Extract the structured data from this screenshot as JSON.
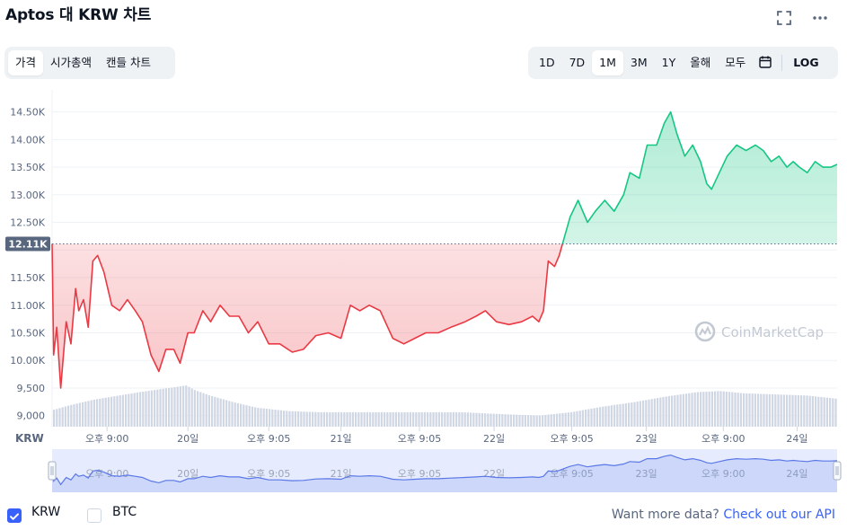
{
  "header": {
    "title": "Aptos 대 KRW 차트"
  },
  "chart_type_tabs": [
    {
      "label": "가격",
      "active": true
    },
    {
      "label": "시가총액",
      "active": false
    },
    {
      "label": "캔들 차트",
      "active": false
    }
  ],
  "range_tabs": [
    {
      "label": "1D",
      "active": false
    },
    {
      "label": "7D",
      "active": false
    },
    {
      "label": "1M",
      "active": true
    },
    {
      "label": "3M",
      "active": false
    },
    {
      "label": "1Y",
      "active": false
    },
    {
      "label": "올해",
      "active": false
    },
    {
      "label": "모두",
      "active": false
    }
  ],
  "log_label": "LOG",
  "icons": {
    "fullscreen": "fullscreen-icon",
    "more": "more-icon",
    "calendar": "calendar-icon",
    "check": "check-icon"
  },
  "colors": {
    "up": "#16c784",
    "down": "#ea3943",
    "volume": "#cfd6e4",
    "accent": "#3861fb",
    "navigator_line": "#5b78e8"
  },
  "watermark": "CoinMarketCap",
  "currency_label": "KRW",
  "legend": {
    "krw_label": "KRW",
    "btc_label": "BTC",
    "krw_checked": true,
    "btc_checked": false
  },
  "api": {
    "text": "Want more data?",
    "link": "Check out our API"
  },
  "chart_data": {
    "type": "line",
    "ylim": [
      8800,
      14900
    ],
    "y_ticks": [
      9000,
      9500,
      10000,
      10500,
      11000,
      11500,
      12000,
      12500,
      13000,
      13500,
      14000,
      14500
    ],
    "y_tick_labels": [
      "9,000",
      "9,500",
      "10.00K",
      "10.50K",
      "11.00K",
      "11.50K",
      "",
      "12.50K",
      "13.00K",
      "13.50K",
      "14.00K",
      "14.50K"
    ],
    "baseline": 12110,
    "baseline_label": "12.11K",
    "x_ticks": [
      {
        "t": 0.07,
        "label": "오후 9:00"
      },
      {
        "t": 0.173,
        "label": "20일"
      },
      {
        "t": 0.276,
        "label": "오후 9:05"
      },
      {
        "t": 0.368,
        "label": "21일"
      },
      {
        "t": 0.468,
        "label": "오후 9:05"
      },
      {
        "t": 0.563,
        "label": "22일"
      },
      {
        "t": 0.662,
        "label": "오후 9:05"
      },
      {
        "t": 0.757,
        "label": "23일"
      },
      {
        "t": 0.855,
        "label": "오후 9:00"
      },
      {
        "t": 0.949,
        "label": "24일"
      }
    ],
    "price_points": [
      [
        0.0,
        12110
      ],
      [
        0.002,
        10100
      ],
      [
        0.006,
        10600
      ],
      [
        0.011,
        9500
      ],
      [
        0.018,
        10700
      ],
      [
        0.024,
        10300
      ],
      [
        0.03,
        11300
      ],
      [
        0.034,
        10900
      ],
      [
        0.04,
        11100
      ],
      [
        0.046,
        10600
      ],
      [
        0.052,
        11800
      ],
      [
        0.058,
        11900
      ],
      [
        0.066,
        11600
      ],
      [
        0.076,
        11000
      ],
      [
        0.086,
        10900
      ],
      [
        0.096,
        11100
      ],
      [
        0.106,
        10900
      ],
      [
        0.115,
        10700
      ],
      [
        0.126,
        10100
      ],
      [
        0.136,
        9800
      ],
      [
        0.145,
        10200
      ],
      [
        0.155,
        10200
      ],
      [
        0.163,
        9950
      ],
      [
        0.173,
        10500
      ],
      [
        0.181,
        10500
      ],
      [
        0.192,
        10900
      ],
      [
        0.202,
        10700
      ],
      [
        0.214,
        11000
      ],
      [
        0.226,
        10800
      ],
      [
        0.238,
        10800
      ],
      [
        0.25,
        10500
      ],
      [
        0.262,
        10700
      ],
      [
        0.276,
        10300
      ],
      [
        0.29,
        10300
      ],
      [
        0.306,
        10150
      ],
      [
        0.32,
        10200
      ],
      [
        0.336,
        10450
      ],
      [
        0.352,
        10500
      ],
      [
        0.368,
        10400
      ],
      [
        0.38,
        11000
      ],
      [
        0.392,
        10900
      ],
      [
        0.404,
        11000
      ],
      [
        0.418,
        10900
      ],
      [
        0.434,
        10400
      ],
      [
        0.448,
        10300
      ],
      [
        0.462,
        10400
      ],
      [
        0.476,
        10500
      ],
      [
        0.492,
        10500
      ],
      [
        0.508,
        10600
      ],
      [
        0.526,
        10700
      ],
      [
        0.54,
        10800
      ],
      [
        0.552,
        10900
      ],
      [
        0.566,
        10700
      ],
      [
        0.582,
        10650
      ],
      [
        0.598,
        10700
      ],
      [
        0.612,
        10800
      ],
      [
        0.62,
        10700
      ],
      [
        0.626,
        10900
      ],
      [
        0.632,
        11800
      ],
      [
        0.64,
        11700
      ],
      [
        0.646,
        11900
      ],
      [
        0.652,
        12200
      ],
      [
        0.66,
        12600
      ],
      [
        0.67,
        12900
      ],
      [
        0.682,
        12500
      ],
      [
        0.692,
        12700
      ],
      [
        0.704,
        12900
      ],
      [
        0.716,
        12700
      ],
      [
        0.728,
        13000
      ],
      [
        0.736,
        13400
      ],
      [
        0.748,
        13300
      ],
      [
        0.758,
        13900
      ],
      [
        0.77,
        13900
      ],
      [
        0.78,
        14300
      ],
      [
        0.788,
        14500
      ],
      [
        0.796,
        14100
      ],
      [
        0.806,
        13700
      ],
      [
        0.816,
        13900
      ],
      [
        0.826,
        13600
      ],
      [
        0.834,
        13200
      ],
      [
        0.84,
        13100
      ],
      [
        0.85,
        13400
      ],
      [
        0.86,
        13700
      ],
      [
        0.872,
        13900
      ],
      [
        0.884,
        13800
      ],
      [
        0.896,
        13900
      ],
      [
        0.906,
        13800
      ],
      [
        0.916,
        13600
      ],
      [
        0.926,
        13700
      ],
      [
        0.936,
        13500
      ],
      [
        0.944,
        13600
      ],
      [
        0.952,
        13500
      ],
      [
        0.962,
        13400
      ],
      [
        0.972,
        13600
      ],
      [
        0.982,
        13500
      ],
      [
        0.992,
        13500
      ],
      [
        1.0,
        13550
      ]
    ],
    "volume_points": [
      [
        0.0,
        0.3
      ],
      [
        0.02,
        0.38
      ],
      [
        0.05,
        0.48
      ],
      [
        0.08,
        0.55
      ],
      [
        0.11,
        0.62
      ],
      [
        0.14,
        0.68
      ],
      [
        0.16,
        0.72
      ],
      [
        0.17,
        0.74
      ],
      [
        0.18,
        0.66
      ],
      [
        0.2,
        0.56
      ],
      [
        0.23,
        0.44
      ],
      [
        0.26,
        0.34
      ],
      [
        0.3,
        0.28
      ],
      [
        0.34,
        0.26
      ],
      [
        0.4,
        0.26
      ],
      [
        0.46,
        0.26
      ],
      [
        0.52,
        0.26
      ],
      [
        0.58,
        0.22
      ],
      [
        0.62,
        0.2
      ],
      [
        0.66,
        0.26
      ],
      [
        0.7,
        0.36
      ],
      [
        0.74,
        0.44
      ],
      [
        0.78,
        0.54
      ],
      [
        0.82,
        0.62
      ],
      [
        0.85,
        0.64
      ],
      [
        0.88,
        0.6
      ],
      [
        0.92,
        0.58
      ],
      [
        0.96,
        0.56
      ],
      [
        1.0,
        0.5
      ]
    ],
    "navigator_range": [
      0,
      1
    ],
    "grid": true
  }
}
